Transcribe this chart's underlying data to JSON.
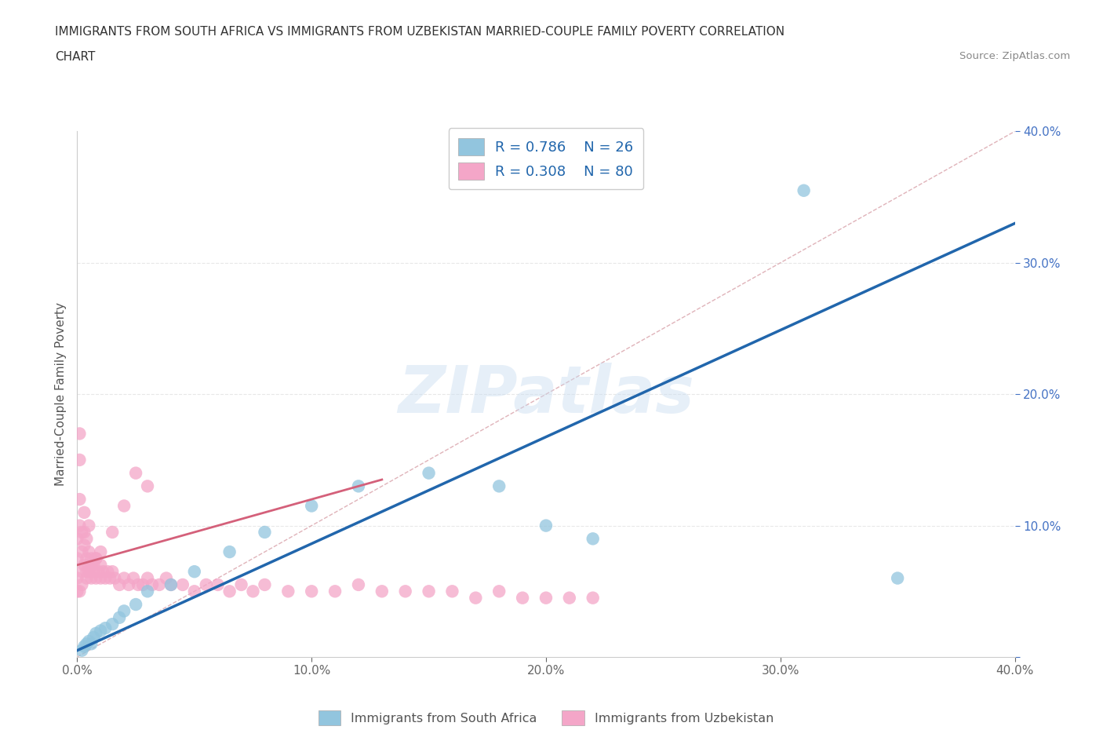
{
  "title_line1": "IMMIGRANTS FROM SOUTH AFRICA VS IMMIGRANTS FROM UZBEKISTAN MARRIED-COUPLE FAMILY POVERTY CORRELATION",
  "title_line2": "CHART",
  "source": "Source: ZipAtlas.com",
  "ylabel": "Married-Couple Family Poverty",
  "xlim": [
    0.0,
    0.4
  ],
  "ylim": [
    0.0,
    0.4
  ],
  "xtick_values": [
    0.0,
    0.1,
    0.2,
    0.3,
    0.4
  ],
  "ytick_values": [
    0.0,
    0.1,
    0.2,
    0.3,
    0.4
  ],
  "R_blue": 0.786,
  "N_blue": 26,
  "R_pink": 0.308,
  "N_pink": 80,
  "blue_color": "#92C5DE",
  "pink_color": "#F4A6C8",
  "blue_line_color": "#2166AC",
  "pink_line_color": "#D4607A",
  "diagonal_color": "#D8A0A8",
  "watermark": "ZIPatlas",
  "legend_label_blue": "Immigrants from South Africa",
  "legend_label_pink": "Immigrants from Uzbekistan",
  "blue_scatter_x": [
    0.002,
    0.003,
    0.004,
    0.005,
    0.006,
    0.007,
    0.008,
    0.01,
    0.012,
    0.015,
    0.018,
    0.02,
    0.025,
    0.03,
    0.04,
    0.05,
    0.065,
    0.08,
    0.1,
    0.12,
    0.15,
    0.18,
    0.2,
    0.22,
    0.31,
    0.35
  ],
  "blue_scatter_y": [
    0.005,
    0.008,
    0.01,
    0.012,
    0.01,
    0.015,
    0.018,
    0.02,
    0.022,
    0.025,
    0.03,
    0.035,
    0.04,
    0.05,
    0.055,
    0.065,
    0.08,
    0.095,
    0.115,
    0.13,
    0.14,
    0.13,
    0.1,
    0.09,
    0.355,
    0.06
  ],
  "pink_scatter_x": [
    0.0,
    0.0,
    0.0,
    0.0,
    0.001,
    0.001,
    0.001,
    0.001,
    0.002,
    0.002,
    0.002,
    0.003,
    0.003,
    0.003,
    0.003,
    0.004,
    0.004,
    0.004,
    0.005,
    0.005,
    0.005,
    0.005,
    0.006,
    0.006,
    0.007,
    0.007,
    0.008,
    0.008,
    0.009,
    0.01,
    0.01,
    0.011,
    0.012,
    0.013,
    0.014,
    0.015,
    0.016,
    0.018,
    0.02,
    0.022,
    0.024,
    0.026,
    0.028,
    0.03,
    0.032,
    0.035,
    0.038,
    0.04,
    0.045,
    0.05,
    0.055,
    0.06,
    0.065,
    0.07,
    0.075,
    0.08,
    0.09,
    0.1,
    0.11,
    0.12,
    0.13,
    0.14,
    0.15,
    0.16,
    0.17,
    0.18,
    0.19,
    0.2,
    0.21,
    0.22,
    0.03,
    0.025,
    0.02,
    0.015,
    0.01,
    0.008,
    0.006,
    0.004,
    0.002,
    0.001
  ],
  "pink_scatter_y": [
    0.075,
    0.09,
    0.06,
    0.05,
    0.1,
    0.12,
    0.15,
    0.17,
    0.065,
    0.08,
    0.095,
    0.07,
    0.085,
    0.095,
    0.11,
    0.075,
    0.09,
    0.065,
    0.08,
    0.1,
    0.065,
    0.07,
    0.06,
    0.075,
    0.065,
    0.07,
    0.06,
    0.075,
    0.065,
    0.06,
    0.07,
    0.065,
    0.06,
    0.065,
    0.06,
    0.065,
    0.06,
    0.055,
    0.06,
    0.055,
    0.06,
    0.055,
    0.055,
    0.06,
    0.055,
    0.055,
    0.06,
    0.055,
    0.055,
    0.05,
    0.055,
    0.055,
    0.05,
    0.055,
    0.05,
    0.055,
    0.05,
    0.05,
    0.05,
    0.055,
    0.05,
    0.05,
    0.05,
    0.05,
    0.045,
    0.05,
    0.045,
    0.045,
    0.045,
    0.045,
    0.13,
    0.14,
    0.115,
    0.095,
    0.08,
    0.075,
    0.07,
    0.06,
    0.055,
    0.05
  ],
  "blue_line_x0": 0.0,
  "blue_line_y0": 0.005,
  "blue_line_x1": 0.4,
  "blue_line_y1": 0.33,
  "pink_line_x0": 0.0,
  "pink_line_y0": 0.07,
  "pink_line_x1": 0.13,
  "pink_line_y1": 0.135,
  "background_color": "#FFFFFF",
  "grid_color": "#E8E8E8"
}
